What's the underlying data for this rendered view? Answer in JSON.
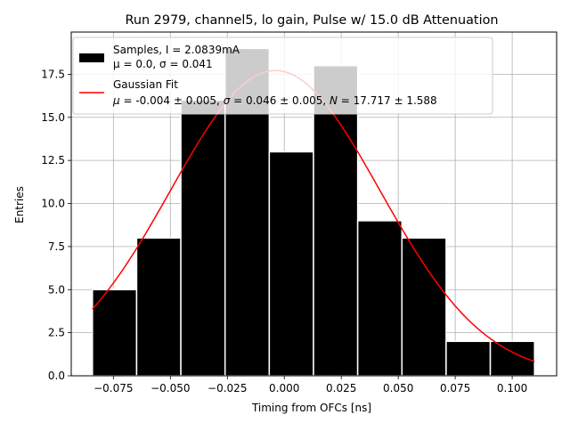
{
  "chart_data": {
    "type": "bar",
    "title": "Run 2979, channel5, lo gain, Pulse w/ 15.0 dB Attenuation",
    "xlabel": "Timing from OFCs [ns]",
    "ylabel": "Entries",
    "xlim": [
      -0.0935,
      0.1195
    ],
    "ylim": [
      0,
      19.95
    ],
    "xticks": [
      -0.075,
      -0.05,
      -0.025,
      0.0,
      0.025,
      0.05,
      0.075,
      0.1
    ],
    "xtick_labels": [
      "−0.075",
      "−0.050",
      "−0.025",
      "0.000",
      "0.025",
      "0.050",
      "0.075",
      "0.100"
    ],
    "yticks": [
      0.0,
      2.5,
      5.0,
      7.5,
      10.0,
      12.5,
      15.0,
      17.5
    ],
    "ytick_labels": [
      "0.0",
      "2.5",
      "5.0",
      "7.5",
      "10.0",
      "12.5",
      "15.0",
      "17.5"
    ],
    "grid": true,
    "legend_position": "top-left",
    "bins": {
      "edges": [
        -0.0842,
        -0.0648,
        -0.0454,
        -0.026,
        -0.0066,
        0.0128,
        0.0322,
        0.0516,
        0.071,
        0.0904,
        0.1098
      ],
      "values": [
        5,
        8,
        16,
        19,
        13,
        18,
        9,
        8,
        2,
        2
      ]
    },
    "series": [
      {
        "name": "Samples, I = 2.0839mA",
        "stats": "μ = 0.0, σ = 0.041",
        "kind": "histogram",
        "color": "#000000"
      },
      {
        "name": "Gaussian Fit",
        "stats_parts": [
          {
            "text": "μ",
            "italic": true
          },
          {
            "text": " = -0.004 ± 0.005, ",
            "italic": false
          },
          {
            "text": "σ",
            "italic": true
          },
          {
            "text": " = 0.046 ± 0.005, ",
            "italic": false
          },
          {
            "text": "N",
            "italic": true
          },
          {
            "text": " = 17.717 ± 1.588",
            "italic": false
          }
        ],
        "kind": "line",
        "color": "#ff0000",
        "mu": -0.004,
        "sigma": 0.046,
        "N": 17.717
      }
    ],
    "colors": {
      "bar_fill": "#000000",
      "bar_edge": "#ffffff",
      "fit_line": "#ff0000",
      "grid": "#b0b0b0",
      "legend_edge": "#cccccc"
    }
  }
}
